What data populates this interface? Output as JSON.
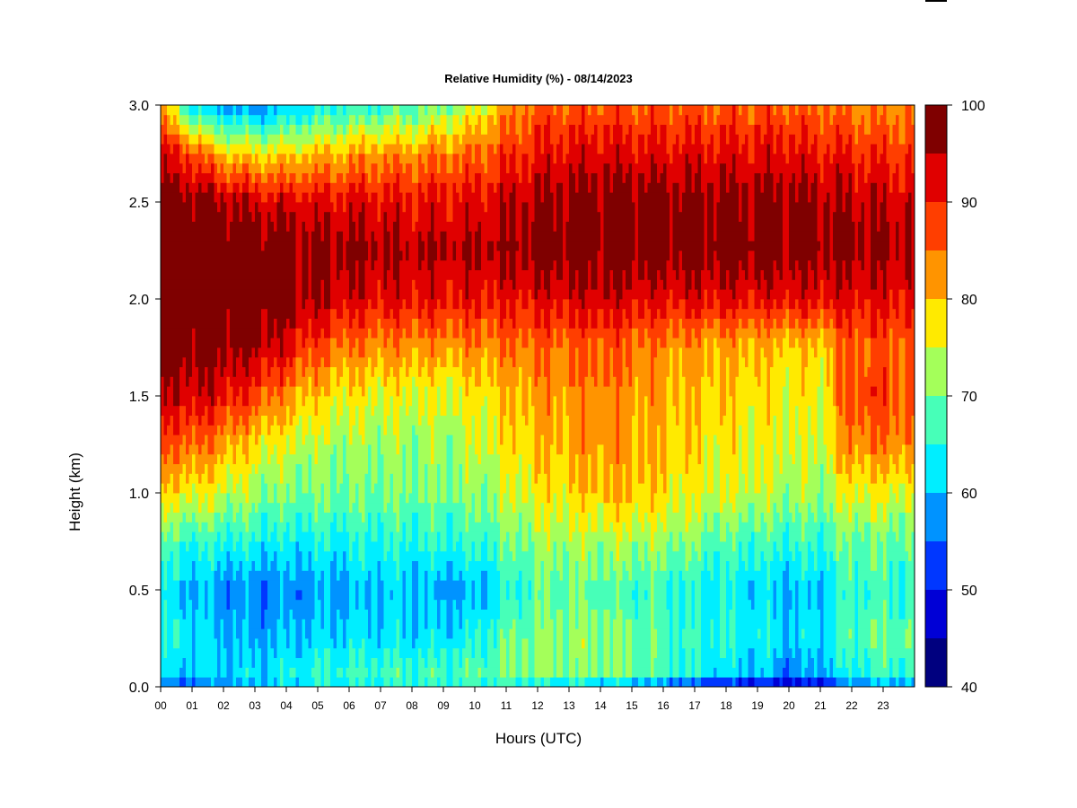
{
  "chart_data": {
    "type": "heatmap",
    "title": "Relative Humidity (%) - 08/14/2023",
    "xlabel": "Hours (UTC)",
    "ylabel": "Height (km)",
    "xlim": [
      0,
      24
    ],
    "ylim": [
      0.0,
      3.0
    ],
    "x_ticks": [
      "00",
      "01",
      "02",
      "03",
      "04",
      "05",
      "06",
      "07",
      "08",
      "09",
      "10",
      "11",
      "12",
      "13",
      "14",
      "15",
      "16",
      "17",
      "18",
      "19",
      "20",
      "21",
      "22",
      "23"
    ],
    "y_ticks": [
      "0.0",
      "0.5",
      "1.0",
      "1.5",
      "2.0",
      "2.5",
      "3.0"
    ],
    "colorbar": {
      "levels": [
        40,
        45,
        50,
        55,
        60,
        65,
        70,
        75,
        80,
        85,
        90,
        95,
        100
      ],
      "labels": [
        "40",
        "50",
        "60",
        "70",
        "80",
        "90",
        "100"
      ],
      "colors": [
        "#00007f",
        "#0000d6",
        "#0037ff",
        "#0093ff",
        "#00eeff",
        "#47ffb8",
        "#a4ff5a",
        "#ffea00",
        "#ff9400",
        "#ff3e00",
        "#e00000",
        "#7f0000"
      ]
    },
    "profile_heights_km": [
      0.0,
      0.05,
      0.25,
      0.5,
      0.75,
      1.0,
      1.25,
      1.5,
      1.75,
      2.0,
      2.25,
      2.5,
      2.75,
      3.0
    ],
    "profiles": [
      {
        "hour": 0,
        "rh": [
          52,
          60,
          64,
          62,
          67,
          78,
          86,
          93,
          98,
          99,
          99,
          98,
          92,
          82
        ]
      },
      {
        "hour": 1,
        "rh": [
          52,
          61,
          63,
          60,
          66,
          77,
          86,
          94,
          98,
          99,
          99,
          98,
          88,
          62
        ]
      },
      {
        "hour": 2,
        "rh": [
          55,
          62,
          60,
          58,
          65,
          75,
          82,
          92,
          97,
          99,
          99,
          96,
          80,
          58
        ]
      },
      {
        "hour": 3,
        "rh": [
          58,
          62,
          59,
          56,
          64,
          72,
          78,
          88,
          96,
          99,
          99,
          94,
          78,
          56
        ]
      },
      {
        "hour": 4,
        "rh": [
          60,
          64,
          60,
          57,
          63,
          70,
          75,
          83,
          92,
          98,
          98,
          93,
          78,
          60
        ]
      },
      {
        "hour": 5,
        "rh": [
          62,
          66,
          61,
          58,
          64,
          70,
          73,
          79,
          87,
          95,
          97,
          92,
          80,
          63
        ]
      },
      {
        "hour": 6,
        "rh": [
          62,
          67,
          62,
          59,
          64,
          70,
          72,
          77,
          84,
          93,
          97,
          92,
          82,
          64
        ]
      },
      {
        "hour": 7,
        "rh": [
          62,
          68,
          62,
          61,
          65,
          70,
          72,
          76,
          83,
          92,
          96,
          92,
          83,
          66
        ]
      },
      {
        "hour": 8,
        "rh": [
          63,
          67,
          62,
          60,
          65,
          70,
          72,
          76,
          83,
          92,
          95,
          91,
          83,
          67
        ]
      },
      {
        "hour": 9,
        "rh": [
          63,
          68,
          62,
          58,
          65,
          70,
          72,
          75,
          82,
          91,
          95,
          92,
          84,
          70
        ]
      },
      {
        "hour": 10,
        "rh": [
          63,
          69,
          64,
          59,
          66,
          71,
          74,
          77,
          83,
          91,
          95,
          92,
          85,
          74
        ]
      },
      {
        "hour": 11,
        "rh": [
          62,
          70,
          69,
          64,
          69,
          74,
          77,
          80,
          84,
          91,
          96,
          94,
          88,
          82
        ]
      },
      {
        "hour": 12,
        "rh": [
          60,
          71,
          71,
          68,
          72,
          77,
          80,
          82,
          85,
          92,
          98,
          96,
          91,
          86
        ]
      },
      {
        "hour": 13,
        "rh": [
          58,
          70,
          72,
          69,
          73,
          78,
          81,
          83,
          85,
          93,
          98,
          97,
          92,
          86
        ]
      },
      {
        "hour": 14,
        "rh": [
          56,
          70,
          71,
          68,
          73,
          80,
          83,
          84,
          86,
          94,
          98,
          98,
          93,
          86
        ]
      },
      {
        "hour": 15,
        "rh": [
          54,
          69,
          70,
          67,
          73,
          80,
          82,
          83,
          85,
          93,
          98,
          98,
          92,
          86
        ]
      },
      {
        "hour": 16,
        "rh": [
          50,
          67,
          68,
          66,
          72,
          78,
          80,
          81,
          83,
          92,
          98,
          98,
          92,
          86
        ]
      },
      {
        "hour": 17,
        "rh": [
          46,
          64,
          66,
          64,
          70,
          76,
          78,
          80,
          82,
          92,
          98,
          97,
          92,
          86
        ]
      },
      {
        "hour": 18,
        "rh": [
          43,
          61,
          65,
          63,
          68,
          75,
          77,
          79,
          81,
          92,
          98,
          97,
          92,
          86
        ]
      },
      {
        "hour": 19,
        "rh": [
          43,
          60,
          64,
          62,
          67,
          74,
          76,
          78,
          80,
          92,
          98,
          97,
          92,
          86
        ]
      },
      {
        "hour": 20,
        "rh": [
          42,
          56,
          61,
          59,
          66,
          73,
          75,
          77,
          79,
          92,
          97,
          97,
          92,
          86
        ]
      },
      {
        "hour": 21,
        "rh": [
          44,
          58,
          63,
          61,
          66,
          72,
          74,
          76,
          79,
          92,
          97,
          96,
          91,
          85
        ]
      },
      {
        "hour": 22,
        "rh": [
          52,
          64,
          68,
          67,
          70,
          77,
          84,
          88,
          86,
          92,
          97,
          95,
          90,
          84
        ]
      },
      {
        "hour": 23,
        "rh": [
          55,
          66,
          69,
          66,
          69,
          76,
          84,
          88,
          86,
          92,
          96,
          94,
          89,
          83
        ]
      },
      {
        "hour": 24,
        "rh": [
          55,
          66,
          69,
          66,
          69,
          76,
          83,
          87,
          86,
          92,
          95,
          94,
          89,
          83
        ]
      }
    ]
  }
}
